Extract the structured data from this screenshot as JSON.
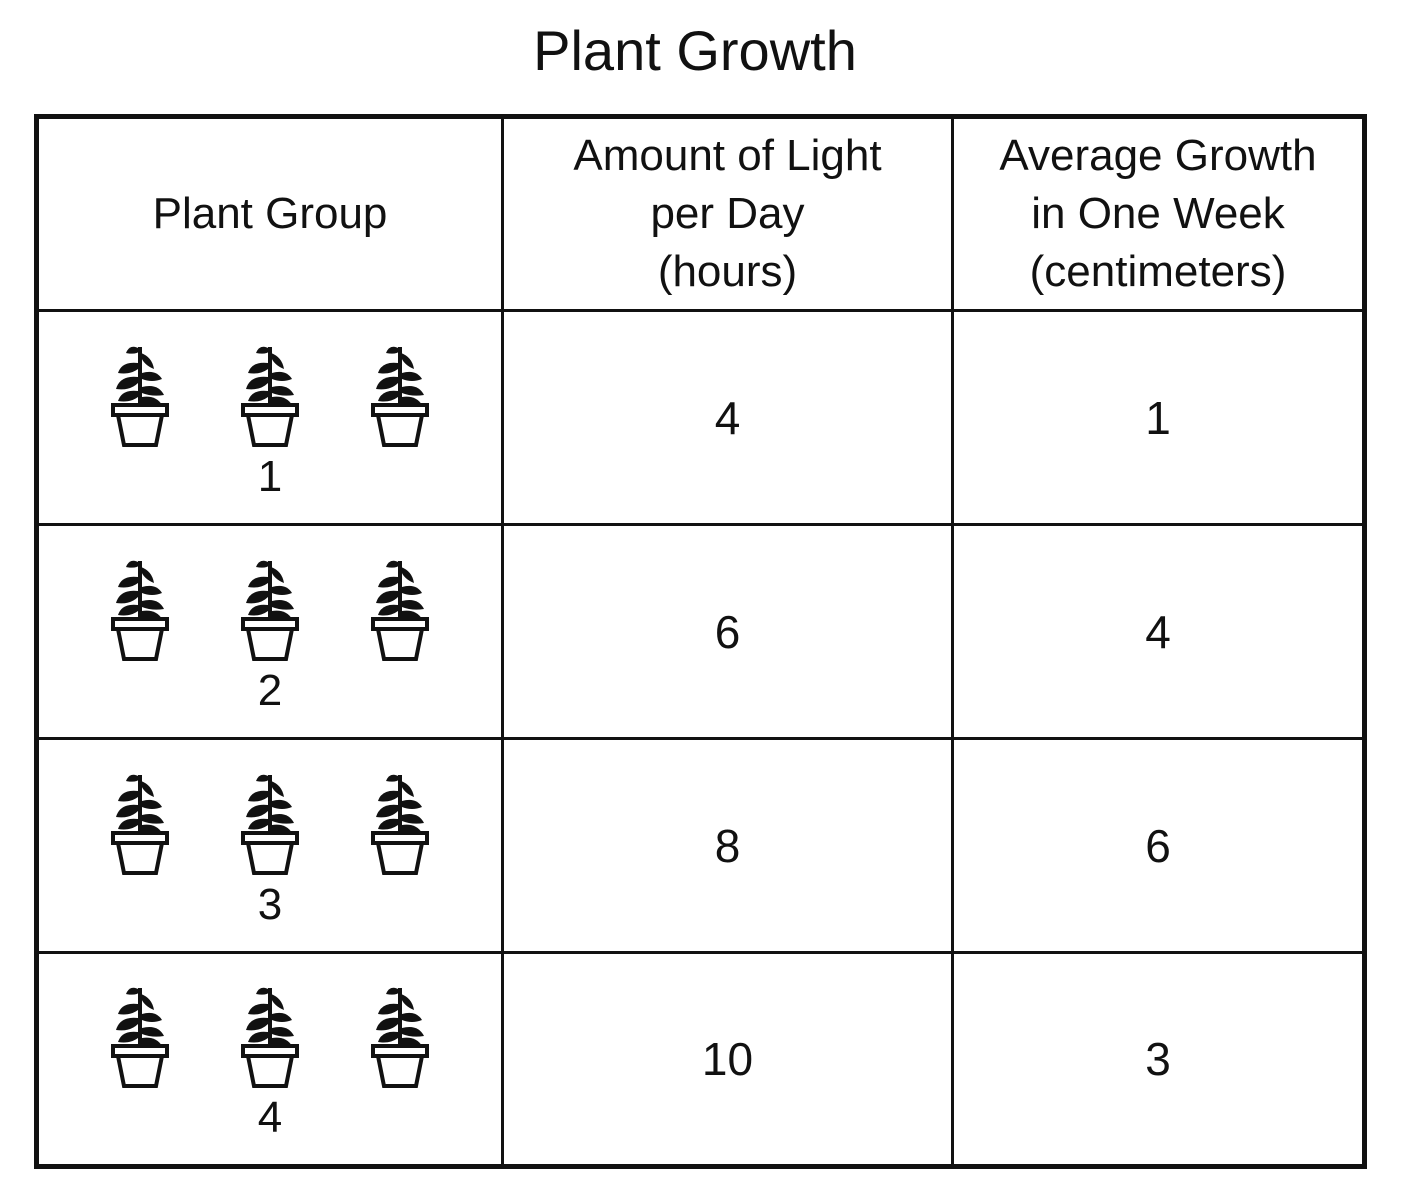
{
  "title": "Plant Growth",
  "headers": {
    "group": "Plant Group",
    "light_line1": "Amount of Light",
    "light_line2": "per Day",
    "light_line3": "(hours)",
    "growth_line1": "Average Growth",
    "growth_line2": "in One Week",
    "growth_line3": "(centimeters)"
  },
  "rows": [
    {
      "group": "1",
      "light": "4",
      "growth": "1"
    },
    {
      "group": "2",
      "light": "6",
      "growth": "4"
    },
    {
      "group": "3",
      "light": "8",
      "growth": "6"
    },
    {
      "group": "4",
      "light": "10",
      "growth": "3"
    }
  ],
  "icons": {
    "plant": "potted-plant-icon"
  }
}
